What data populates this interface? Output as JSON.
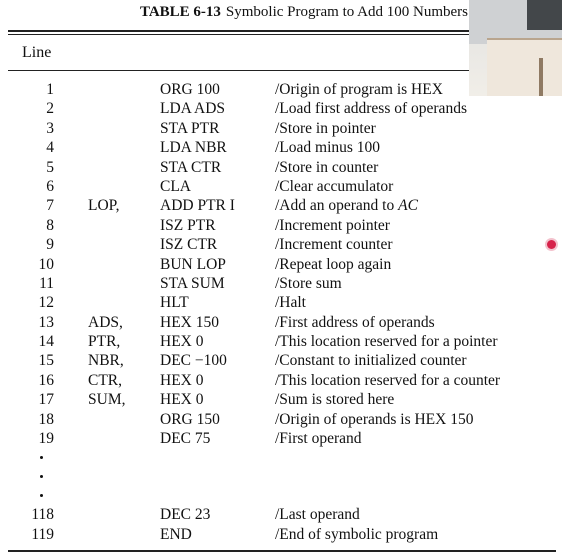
{
  "table": {
    "number": "TABLE 6-13",
    "caption": "Symbolic Program to Add 100 Numbers",
    "column_header": "Line",
    "rows": [
      {
        "line": "1",
        "label": "",
        "instruction": "ORG 100",
        "comment": "/Origin of program is HEX"
      },
      {
        "line": "2",
        "label": "",
        "instruction": "LDA ADS",
        "comment": "/Load first address of operands"
      },
      {
        "line": "3",
        "label": "",
        "instruction": "STA PTR",
        "comment": "/Store in pointer"
      },
      {
        "line": "4",
        "label": "",
        "instruction": "LDA NBR",
        "comment": "/Load minus 100"
      },
      {
        "line": "5",
        "label": "",
        "instruction": "STA CTR",
        "comment": "/Store in counter"
      },
      {
        "line": "6",
        "label": "",
        "instruction": "CLA",
        "comment": "/Clear accumulator"
      },
      {
        "line": "7",
        "label": "LOP,",
        "instruction": "ADD PTR I",
        "comment": "/Add an operand to ",
        "comment_italic": "AC"
      },
      {
        "line": "8",
        "label": "",
        "instruction": "ISZ PTR",
        "comment": "/Increment pointer"
      },
      {
        "line": "9",
        "label": "",
        "instruction": "ISZ CTR",
        "comment": "/Increment counter"
      },
      {
        "line": "10",
        "label": "",
        "instruction": "BUN LOP",
        "comment": "/Repeat loop again"
      },
      {
        "line": "11",
        "label": "",
        "instruction": "STA SUM",
        "comment": "/Store sum"
      },
      {
        "line": "12",
        "label": "",
        "instruction": "HLT",
        "comment": "/Halt"
      },
      {
        "line": "13",
        "label": "ADS,",
        "instruction": "HEX 150",
        "comment": "/First address of operands"
      },
      {
        "line": "14",
        "label": "PTR,",
        "instruction": "HEX 0",
        "comment": "/This location reserved for a pointer"
      },
      {
        "line": "15",
        "label": "NBR,",
        "instruction": "DEC −100",
        "comment": "/Constant to initialized counter"
      },
      {
        "line": "16",
        "label": "CTR,",
        "instruction": "HEX 0",
        "comment": "/This location reserved for a counter"
      },
      {
        "line": "17",
        "label": "SUM,",
        "instruction": "HEX 0",
        "comment": "/Sum is stored here"
      },
      {
        "line": "18",
        "label": "",
        "instruction": "ORG 150",
        "comment": "/Origin of operands is HEX 150"
      },
      {
        "line": "19",
        "label": "",
        "instruction": "DEC 75",
        "comment": "/First operand"
      }
    ],
    "tail_rows": [
      {
        "line": "118",
        "label": "",
        "instruction": "DEC 23",
        "comment": "/Last operand"
      },
      {
        "line": "119",
        "label": "",
        "instruction": "END",
        "comment": "/End of symbolic program"
      }
    ]
  },
  "overlays": {
    "record_indicator_color": "#d6224a"
  }
}
